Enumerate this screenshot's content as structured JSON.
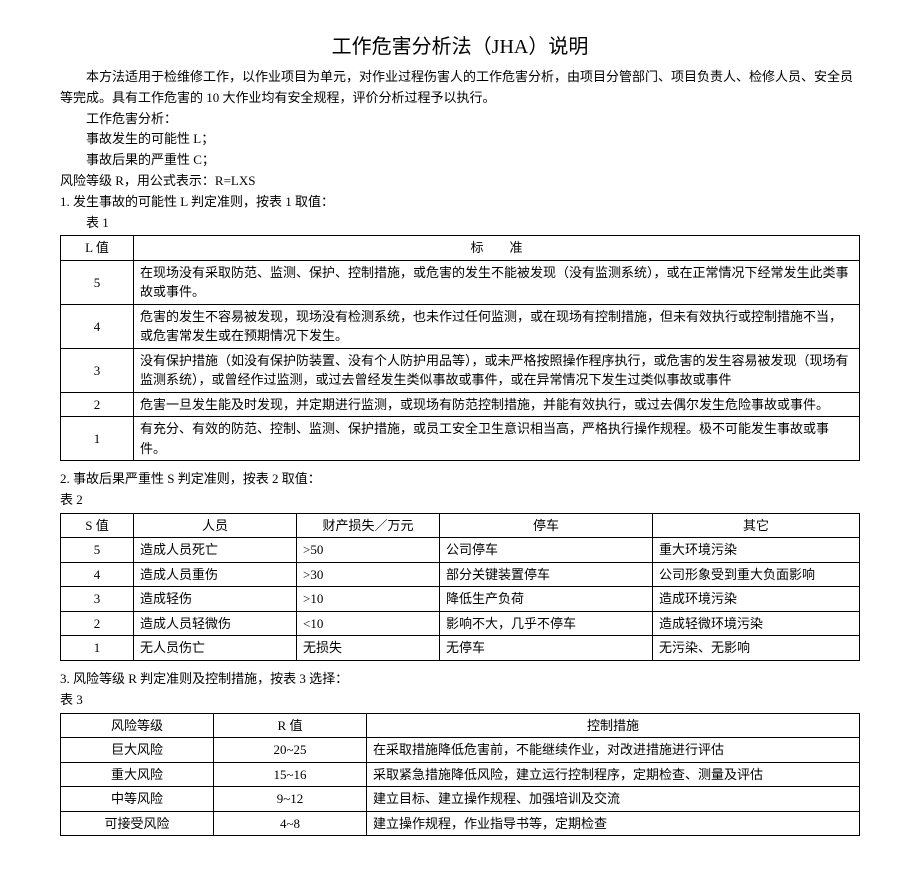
{
  "title": "工作危害分析法（JHA）说明",
  "intro": {
    "p1": "本方法适用于检维修工作，以作业项目为单元，对作业过程伤害人的工作危害分析，由项目分管部门、项目负责人、检修人员、安全员等完成。具有工作危害的 10 大作业均有安全规程，评价分析过程予以执行。",
    "p2": "工作危害分析：",
    "p3": "事故发生的可能性 L；",
    "p4": "事故后果的严重性 C；",
    "p5": "风险等级 R，用公式表示：R=LXS",
    "p6": "1. 发生事故的可能性 L 判定准则，按表 1 取值：",
    "p7": "表 1"
  },
  "table1": {
    "h1": "L 值",
    "h2": "标　　准",
    "rows": [
      {
        "v": "5",
        "d": "在现场没有采取防范、监测、保护、控制措施，或危害的发生不能被发现（没有监测系统），或在正常情况下经常发生此类事故或事件。"
      },
      {
        "v": "4",
        "d": "危害的发生不容易被发现，现场没有检测系统，也未作过任何监测，或在现场有控制措施，但未有效执行或控制措施不当，或危害常发生或在预期情况下发生。"
      },
      {
        "v": "3",
        "d": "没有保护措施（如没有保护防装置、没有个人防护用品等），或未严格按照操作程序执行，或危害的发生容易被发现（现场有监测系统），或曾经作过监测，或过去曾经发生类似事故或事件，或在异常情况下发生过类似事故或事件"
      },
      {
        "v": "2",
        "d": "危害一旦发生能及时发现，并定期进行监测，或现场有防范控制措施，并能有效执行，或过去偶尔发生危险事故或事件。"
      },
      {
        "v": "1",
        "d": "有充分、有效的防范、控制、监测、保护措施，或员工安全卫生意识相当高，严格执行操作规程。极不可能发生事故或事件。"
      }
    ]
  },
  "sec2": {
    "p1": "2. 事故后果严重性 S 判定准则，按表 2 取值：",
    "p2": "表 2"
  },
  "table2": {
    "h1": "S 值",
    "h2": "人员",
    "h3": "财产损失／万元",
    "h4": "停车",
    "h5": "其它",
    "rows": [
      {
        "c1": "5",
        "c2": "造成人员死亡",
        "c3": ">50",
        "c4": "公司停车",
        "c5": "重大环境污染"
      },
      {
        "c1": "4",
        "c2": "造成人员重伤",
        "c3": ">30",
        "c4": "部分关键装置停车",
        "c5": "公司形象受到重大负面影响"
      },
      {
        "c1": "3",
        "c2": "造成轻伤",
        "c3": ">10",
        "c4": "降低生产负荷",
        "c5": "造成环境污染"
      },
      {
        "c1": "2",
        "c2": "造成人员轻微伤",
        "c3": "<10",
        "c4": "影响不大，几乎不停车",
        "c5": "造成轻微环境污染"
      },
      {
        "c1": "1",
        "c2": "无人员伤亡",
        "c3": "无损失",
        "c4": "无停车",
        "c5": "无污染、无影响"
      }
    ]
  },
  "sec3": {
    "p1": "3. 风险等级 R 判定准则及控制措施，按表 3 选择：",
    "p2": "表 3"
  },
  "table3": {
    "h1": "风险等级",
    "h2": "R 值",
    "h3": "控制措施",
    "rows": [
      {
        "c1": "巨大风险",
        "c2": "20~25",
        "c3": "在采取措施降低危害前，不能继续作业，对改进措施进行评估"
      },
      {
        "c1": "重大风险",
        "c2": "15~16",
        "c3": "采取紧急措施降低风险，建立运行控制程序，定期检查、测量及评估"
      },
      {
        "c1": "中等风险",
        "c2": "9~12",
        "c3": "建立目标、建立操作规程、加强培训及交流"
      },
      {
        "c1": "可接受风险",
        "c2": "4~8",
        "c3": "建立操作规程，作业指导书等，定期检查"
      }
    ]
  }
}
